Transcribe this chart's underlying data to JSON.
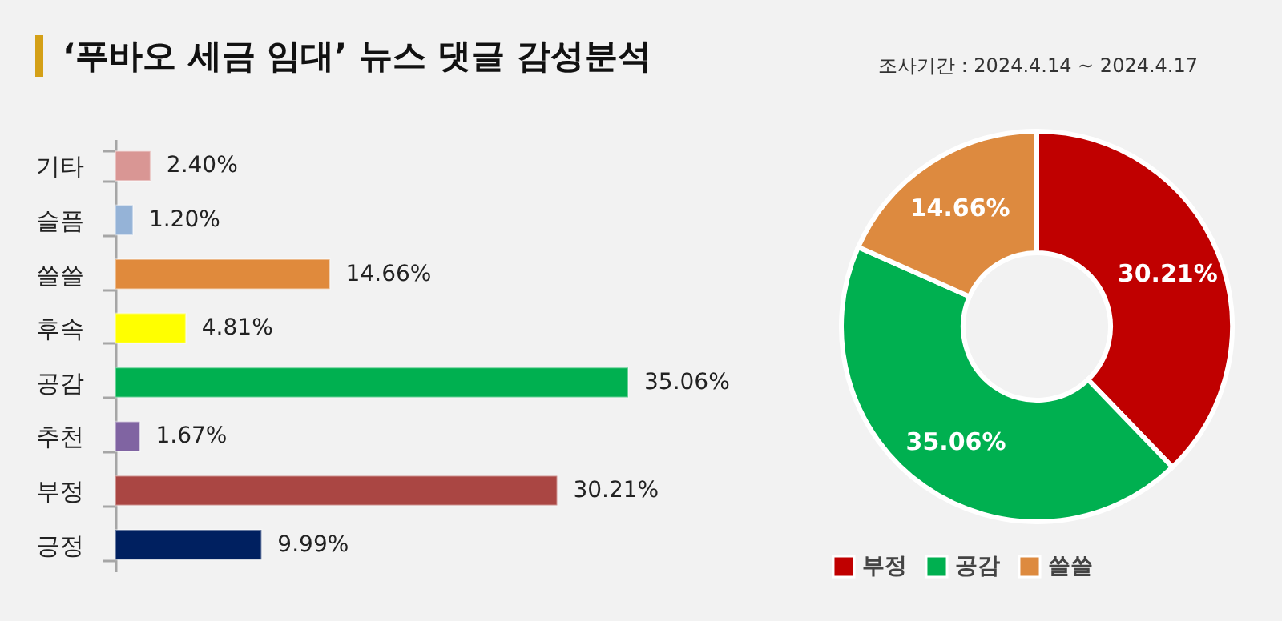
{
  "chart_data": [
    {
      "type": "bar",
      "orientation": "horizontal",
      "title": "‘푸바오 세금 임대’ 뉴스 댓글 감성분석",
      "annotations": [
        "조사기간 : 2024.4.14 ~ 2024.4.17"
      ],
      "categories": [
        "기타",
        "슬픔",
        "쓸쓸",
        "후속",
        "공감",
        "추천",
        "부정",
        "긍정"
      ],
      "values": [
        2.4,
        1.2,
        14.66,
        4.81,
        35.06,
        1.67,
        30.21,
        9.99
      ],
      "colors": [
        "#d99694",
        "#95b3d7",
        "#e08a3c",
        "#ffff00",
        "#00b050",
        "#8064a2",
        "#aa4643",
        "#002060"
      ],
      "value_labels": [
        "2.40%",
        "1.20%",
        "14.66%",
        "4.81%",
        "35.06%",
        "1.67%",
        "30.21%",
        "9.99%"
      ]
    },
    {
      "type": "donut",
      "categories": [
        "부정",
        "공감",
        "쓸쓸"
      ],
      "values": [
        30.21,
        35.06,
        14.66
      ],
      "colors": [
        "#c00000",
        "#00b050",
        "#dd8a3f"
      ],
      "value_labels": [
        "30.21%",
        "35.06%",
        "14.66%"
      ],
      "legend": "bottom"
    }
  ]
}
